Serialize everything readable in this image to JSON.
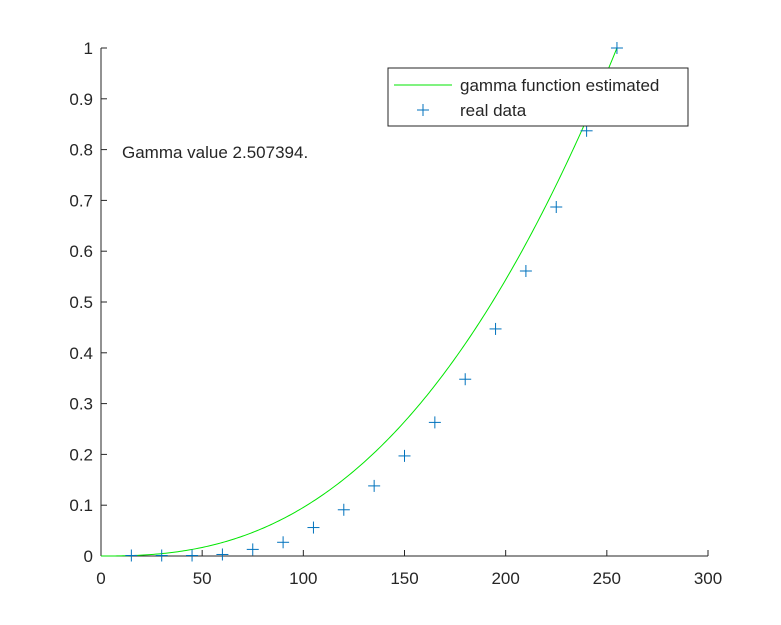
{
  "chart_data": {
    "type": "line",
    "title": "",
    "xlabel": "",
    "ylabel": "",
    "xlim": [
      0,
      300
    ],
    "ylim": [
      0,
      1
    ],
    "xticks": [
      "0",
      "50",
      "100",
      "150",
      "200",
      "250",
      "300"
    ],
    "yticks": [
      "0",
      "0.1",
      "0.2",
      "0.3",
      "0.4",
      "0.5",
      "0.6",
      "0.7",
      "0.8",
      "0.9",
      "1"
    ],
    "grid": false,
    "legend_position": "top-right",
    "annotation": "Gamma value 2.507394.",
    "gamma": 2.507394,
    "series": [
      {
        "name": "gamma function estimated",
        "style": "line",
        "color": "#00e600",
        "x_range": [
          0,
          255
        ]
      },
      {
        "name": "real data",
        "style": "marker-plus",
        "color": "#0072bd",
        "x": [
          15,
          30,
          45,
          60,
          75,
          90,
          105,
          120,
          135,
          150,
          165,
          180,
          195,
          210,
          225,
          240,
          255
        ],
        "y": [
          0.001,
          0.001,
          0.001,
          0.003,
          0.013,
          0.027,
          0.056,
          0.091,
          0.138,
          0.197,
          0.263,
          0.348,
          0.447,
          0.561,
          0.687,
          0.837,
          1.0
        ]
      }
    ]
  }
}
